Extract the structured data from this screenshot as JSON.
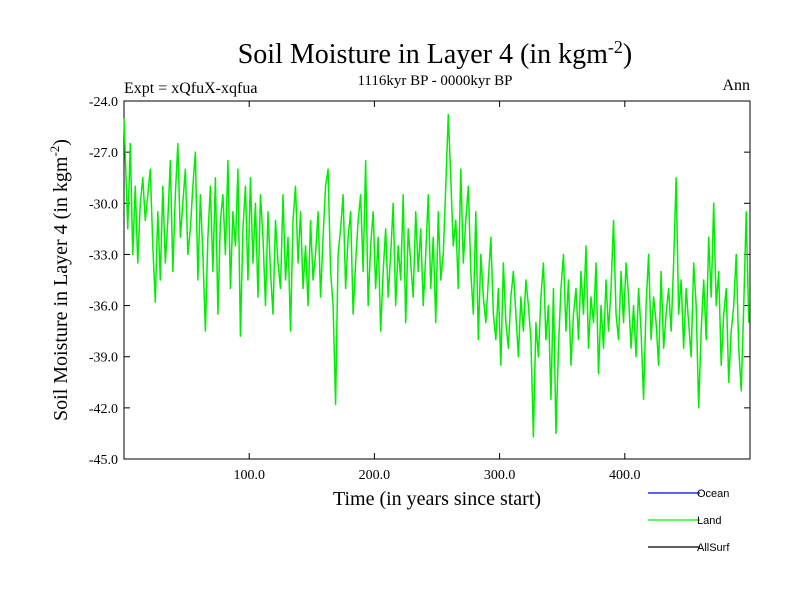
{
  "chart_data": {
    "type": "line",
    "title": "Soil Moisture in Layer 4 (in kgm",
    "title_sup": "-2",
    "title_close": ")",
    "subtitle_left": "Expt = xQfuX-xqfua",
    "subtitle_center": "1116kyr BP - 0000kyr BP",
    "subtitle_right": "Ann",
    "xlabel": "Time (in years since start)",
    "ylabel": "Soil Moisture in Layer 4 (in kgm",
    "ylabel_sup": "-2",
    "ylabel_close": ")",
    "xlim": [
      0,
      500
    ],
    "ylim": [
      -45.0,
      -24.0
    ],
    "xticks": [
      100,
      200,
      300,
      400
    ],
    "xtick_labels": [
      "100.0",
      "200.0",
      "300.0",
      "400.0"
    ],
    "yticks": [
      -24,
      -27,
      -30,
      -33,
      -36,
      -39,
      -42,
      -45
    ],
    "ytick_labels": [
      "-24.0",
      "-27.0",
      "-30.0",
      "-33.0",
      "-36.0",
      "-39.0",
      "-42.0",
      "-45.0"
    ],
    "series": [
      {
        "name": "Ocean",
        "color": "#0000ff",
        "x": [],
        "y": []
      },
      {
        "name": "Land",
        "color": "#00ee00",
        "x": [
          0,
          3,
          5,
          7,
          9,
          11,
          13,
          15,
          17,
          19,
          21,
          23,
          25,
          27,
          29,
          31,
          33,
          35,
          37,
          39,
          41,
          43,
          45,
          47,
          49,
          51,
          53,
          55,
          57,
          59,
          61,
          63,
          65,
          67,
          69,
          71,
          73,
          75,
          77,
          79,
          81,
          83,
          85,
          87,
          89,
          91,
          93,
          95,
          97,
          99,
          101,
          103,
          105,
          107,
          109,
          111,
          113,
          115,
          117,
          119,
          121,
          123,
          125,
          127,
          129,
          131,
          133,
          135,
          137,
          139,
          141,
          143,
          145,
          147,
          149,
          151,
          153,
          155,
          157,
          159,
          161,
          163,
          165,
          167,
          169,
          171,
          173,
          175,
          177,
          179,
          181,
          183,
          185,
          187,
          189,
          191,
          193,
          195,
          197,
          199,
          201,
          203,
          205,
          207,
          209,
          211,
          213,
          215,
          217,
          219,
          221,
          223,
          225,
          227,
          229,
          231,
          233,
          235,
          237,
          239,
          241,
          243,
          245,
          247,
          249,
          251,
          253,
          255,
          257,
          259,
          261,
          263,
          265,
          267,
          269,
          271,
          273,
          275,
          277,
          279,
          281,
          283,
          285,
          287,
          289,
          291,
          293,
          295,
          297,
          299,
          301,
          303,
          305,
          307,
          309,
          311,
          313,
          315,
          317,
          319,
          321,
          323,
          325,
          327,
          329,
          331,
          333,
          335,
          337,
          339,
          341,
          343,
          345,
          347,
          349,
          351,
          353,
          355,
          357,
          359,
          361,
          363,
          365,
          367,
          369,
          371,
          373,
          375,
          377,
          379,
          381,
          383,
          385,
          387,
          389,
          391,
          393,
          395,
          397,
          399,
          401,
          403,
          405,
          407,
          409,
          411,
          413,
          415,
          417,
          419,
          421,
          423,
          425,
          427,
          429,
          431,
          433,
          435,
          437,
          439,
          441,
          443,
          445,
          447,
          449,
          451,
          453,
          455,
          457,
          459,
          461,
          463,
          465,
          467,
          469,
          471,
          473,
          475,
          477,
          479,
          481,
          483,
          485,
          487,
          489,
          491,
          493,
          495,
          497,
          499
        ],
        "y": [
          -25.0,
          -31.5,
          -26.5,
          -33.0,
          -29.0,
          -33.5,
          -30.0,
          -28.5,
          -31.0,
          -29.5,
          -28.0,
          -32.5,
          -35.8,
          -30.5,
          -34.5,
          -29.0,
          -33.5,
          -31.0,
          -27.5,
          -34.0,
          -29.5,
          -26.5,
          -32.0,
          -30.0,
          -28.0,
          -33.0,
          -31.5,
          -29.0,
          -27.0,
          -34.5,
          -29.5,
          -33.0,
          -37.5,
          -32.0,
          -29.0,
          -34.0,
          -28.5,
          -36.5,
          -31.0,
          -29.5,
          -33.0,
          -27.5,
          -35.0,
          -30.5,
          -32.5,
          -28.0,
          -37.8,
          -31.5,
          -29.0,
          -34.5,
          -28.5,
          -33.5,
          -30.0,
          -35.5,
          -29.5,
          -32.0,
          -36.0,
          -30.5,
          -34.0,
          -36.5,
          -31.0,
          -33.5,
          -35.0,
          -29.5,
          -34.5,
          -32.0,
          -37.5,
          -31.0,
          -29.0,
          -33.5,
          -30.5,
          -35.0,
          -32.5,
          -36.0,
          -31.0,
          -34.5,
          -33.0,
          -30.5,
          -35.5,
          -32.0,
          -29.0,
          -28.0,
          -34.0,
          -36.0,
          -41.8,
          -33.0,
          -31.5,
          -29.5,
          -35.0,
          -32.0,
          -30.5,
          -36.5,
          -33.5,
          -31.0,
          -29.5,
          -34.0,
          -27.5,
          -36.0,
          -32.5,
          -30.5,
          -35.0,
          -32.0,
          -37.5,
          -34.0,
          -31.5,
          -35.5,
          -33.0,
          -30.0,
          -36.0,
          -32.5,
          -34.5,
          -29.5,
          -37.0,
          -31.5,
          -33.5,
          -35.5,
          -30.5,
          -34.0,
          -31.5,
          -36.0,
          -33.0,
          -29.5,
          -35.0,
          -32.0,
          -37.0,
          -30.5,
          -34.5,
          -33.0,
          -29.0,
          -24.8,
          -28.5,
          -32.5,
          -31.0,
          -35.0,
          -28.0,
          -33.5,
          -31.0,
          -29.0,
          -34.0,
          -36.5,
          -30.5,
          -38.0,
          -33.0,
          -35.5,
          -37.0,
          -34.5,
          -32.0,
          -36.5,
          -38.0,
          -35.0,
          -39.5,
          -33.5,
          -37.0,
          -38.5,
          -35.5,
          -34.0,
          -36.5,
          -39.0,
          -35.5,
          -37.5,
          -34.5,
          -36.0,
          -38.0,
          -43.7,
          -37.0,
          -39.0,
          -35.5,
          -33.5,
          -38.0,
          -36.0,
          -41.5,
          -35.0,
          -43.5,
          -38.5,
          -35.0,
          -33.0,
          -37.5,
          -34.5,
          -39.5,
          -36.5,
          -35.0,
          -38.0,
          -34.0,
          -36.5,
          -32.5,
          -38.5,
          -35.5,
          -37.0,
          -33.5,
          -40.0,
          -36.0,
          -38.5,
          -34.5,
          -37.5,
          -35.0,
          -31.0,
          -36.5,
          -38.0,
          -34.0,
          -37.0,
          -33.5,
          -35.5,
          -38.5,
          -36.0,
          -39.0,
          -35.0,
          -37.5,
          -41.5,
          -36.0,
          -33.0,
          -38.0,
          -35.5,
          -37.0,
          -39.5,
          -34.0,
          -38.5,
          -36.5,
          -35.0,
          -37.5,
          -33.5,
          -28.5,
          -36.5,
          -34.5,
          -38.5,
          -35.0,
          -37.0,
          -39.0,
          -33.5,
          -36.0,
          -42.0,
          -37.5,
          -34.5,
          -38.0,
          -32.0,
          -35.5,
          -30.0,
          -36.0,
          -34.0,
          -39.5,
          -36.5,
          -35.0,
          -40.5,
          -37.5,
          -36.0,
          -33.0,
          -38.5,
          -41.0,
          -36.0,
          -30.5,
          -37.0
        ]
      },
      {
        "name": "AllSurf",
        "color": "#000000",
        "x": [],
        "y": []
      }
    ],
    "legend_position": "bottom-right"
  }
}
